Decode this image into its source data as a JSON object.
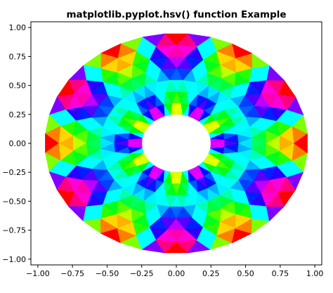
{
  "chart_data": {
    "type": "heatmap",
    "title": "matplotlib.pyplot.hsv() function Example",
    "subtitle": "",
    "xlabel": "",
    "ylabel": "",
    "colormap": "hsv",
    "colormap_stops": [
      "#ff0000",
      "#ffff00",
      "#00ff00",
      "#00ffff",
      "#0000ff",
      "#ff00ff",
      "#ff0000"
    ],
    "xlim": [
      -1.05,
      1.05
    ],
    "ylim": [
      -1.05,
      1.05
    ],
    "x_ticks": [
      -1.0,
      -0.75,
      -0.5,
      -0.25,
      0.0,
      0.25,
      0.5,
      0.75,
      1.0
    ],
    "x_tick_labels": [
      "−1.00",
      "−0.75",
      "−0.50",
      "−0.25",
      "0.00",
      "0.25",
      "0.50",
      "0.75",
      "1.00"
    ],
    "y_ticks": [
      1.0,
      0.75,
      0.5,
      0.25,
      0.0,
      -0.25,
      -0.5,
      -0.75,
      -1.0
    ],
    "y_tick_labels": [
      "1.00",
      "0.75",
      "0.50",
      "0.25",
      "0.00",
      "−0.25",
      "−0.50",
      "−0.75",
      "−1.00"
    ],
    "mesh": {
      "geometry": "annulus triangulation",
      "inner_radius": 0.25,
      "outer_radius": 0.95,
      "n_radii": 8,
      "n_angles": 36,
      "field": "cos(3*r) * cos(6*theta)"
    },
    "grid": false,
    "legend": "none"
  }
}
